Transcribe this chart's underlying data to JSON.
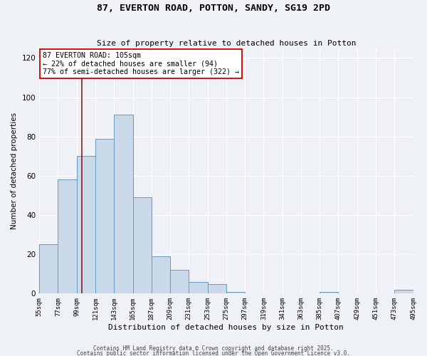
{
  "title": "87, EVERTON ROAD, POTTON, SANDY, SG19 2PD",
  "subtitle": "Size of property relative to detached houses in Potton",
  "xlabel": "Distribution of detached houses by size in Potton",
  "ylabel": "Number of detached properties",
  "bin_edges": [
    55,
    77,
    99,
    121,
    143,
    165,
    187,
    209,
    231,
    253,
    275,
    297,
    319,
    341,
    363,
    385,
    407,
    429,
    451,
    473,
    495
  ],
  "counts": [
    25,
    58,
    70,
    79,
    91,
    49,
    19,
    12,
    6,
    5,
    1,
    0,
    0,
    0,
    0,
    1,
    0,
    0,
    0,
    2
  ],
  "bar_facecolor": "#c9d9ea",
  "bar_edgecolor": "#6699bb",
  "vline_x": 105,
  "vline_color": "#8b1a1a",
  "annotation_title": "87 EVERTON ROAD: 105sqm",
  "annotation_line1": "← 22% of detached houses are smaller (94)",
  "annotation_line2": "77% of semi-detached houses are larger (322) →",
  "ylim": [
    0,
    125
  ],
  "yticks": [
    0,
    20,
    40,
    60,
    80,
    100,
    120
  ],
  "tick_labels": [
    "55sqm",
    "77sqm",
    "99sqm",
    "121sqm",
    "143sqm",
    "165sqm",
    "187sqm",
    "209sqm",
    "231sqm",
    "253sqm",
    "275sqm",
    "297sqm",
    "319sqm",
    "341sqm",
    "363sqm",
    "385sqm",
    "407sqm",
    "429sqm",
    "451sqm",
    "473sqm",
    "495sqm"
  ],
  "background_color": "#eef2f7",
  "grid_color": "#ffffff",
  "footer1": "Contains HM Land Registry data © Crown copyright and database right 2025.",
  "footer2": "Contains public sector information licensed under the Open Government Licence v3.0."
}
